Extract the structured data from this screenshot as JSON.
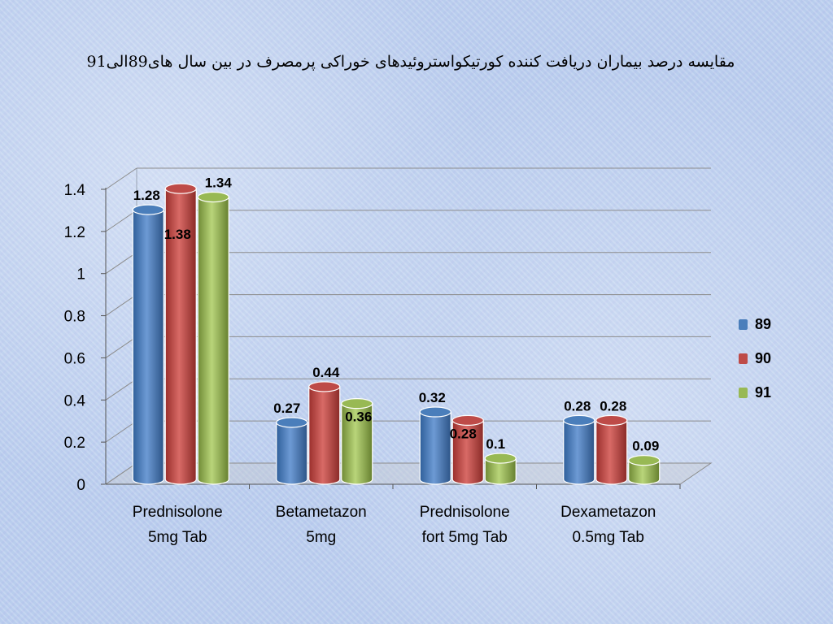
{
  "title": "مقایسه درصد بیماران دریافت کننده کورتیکواستروئیدهای خوراکی پرمصرف در بین سال های89الی91",
  "chart_data": {
    "type": "bar",
    "categories": [
      [
        "Prednisolone",
        "5mg Tab"
      ],
      [
        "Betametazon",
        "5mg"
      ],
      [
        "Prednisolone",
        "fort 5mg Tab"
      ],
      [
        "Dexametazon",
        "0.5mg Tab"
      ]
    ],
    "series": [
      {
        "name": "89",
        "color": "#4a7ebb",
        "values": [
          1.28,
          0.27,
          0.32,
          0.28
        ],
        "labels": [
          "1.28",
          "0.27",
          "0.32",
          "0.28"
        ]
      },
      {
        "name": "90",
        "color": "#be4b48",
        "values": [
          1.38,
          0.44,
          0.28,
          0.28
        ],
        "labels": [
          "1.38",
          "0.44",
          "0.28",
          "0.28"
        ]
      },
      {
        "name": "91",
        "color": "#98b954",
        "values": [
          1.34,
          0.36,
          0.1,
          0.09
        ],
        "labels": [
          "1.34",
          "0.36",
          "0.1",
          "0.09"
        ]
      }
    ],
    "ylim": [
      0,
      1.4
    ],
    "yticks": [
      "0",
      "0.2",
      "0.4",
      "0.6",
      "0.8",
      "1",
      "1.2",
      "1.4"
    ],
    "grid": true,
    "legend_position": "right"
  }
}
